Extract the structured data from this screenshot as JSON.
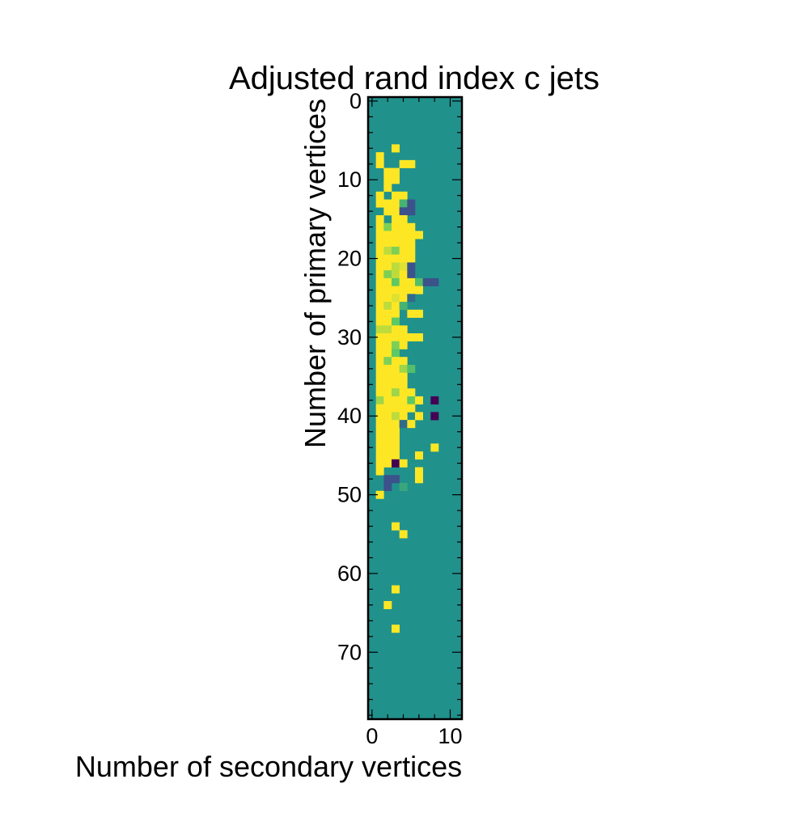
{
  "chart_data": {
    "type": "heatmap",
    "title": "Adjusted rand index c jets",
    "xlabel": "Number of secondary vertices",
    "ylabel": "Number of primary vertices",
    "x_ticks": [
      "0",
      "10"
    ],
    "y_ticks": [
      "0",
      "10",
      "20",
      "30",
      "40",
      "50",
      "60",
      "70"
    ],
    "x_range": [
      -0.5,
      11.5
    ],
    "y_range": [
      -0.5,
      78.5
    ],
    "y_axis_inverted": true,
    "colormap": "viridis",
    "value_range": [
      -1,
      1
    ],
    "background_value": 0,
    "grid": false,
    "legend": "none",
    "cells": [
      {
        "x": 3,
        "y": 6,
        "v": 1
      },
      {
        "x": 1,
        "y": 7,
        "v": 1
      },
      {
        "x": 1,
        "y": 8,
        "v": 1
      },
      {
        "x": 4,
        "y": 8,
        "v": 1
      },
      {
        "x": 5,
        "y": 8,
        "v": 1
      },
      {
        "x": 2,
        "y": 9,
        "v": 1
      },
      {
        "x": 3,
        "y": 9,
        "v": 1
      },
      {
        "x": 2,
        "y": 10,
        "v": 1
      },
      {
        "x": 3,
        "y": 10,
        "v": 1
      },
      {
        "x": 2,
        "y": 11,
        "v": 1
      },
      {
        "x": 1,
        "y": 12,
        "v": 1
      },
      {
        "x": 3,
        "y": 12,
        "v": 1
      },
      {
        "x": 4,
        "y": 12,
        "v": 1
      },
      {
        "x": 1,
        "y": 13,
        "v": 1
      },
      {
        "x": 2,
        "y": 13,
        "v": 1
      },
      {
        "x": 3,
        "y": 13,
        "v": 1
      },
      {
        "x": 4,
        "y": 13,
        "v": 0.3
      },
      {
        "x": 5,
        "y": 13,
        "v": -0.5
      },
      {
        "x": 2,
        "y": 14,
        "v": 1
      },
      {
        "x": 3,
        "y": 14,
        "v": 1
      },
      {
        "x": 4,
        "y": 14,
        "v": -0.5
      },
      {
        "x": 5,
        "y": 14,
        "v": -0.5
      },
      {
        "x": 1,
        "y": 15,
        "v": 1
      },
      {
        "x": 3,
        "y": 15,
        "v": 1
      },
      {
        "x": 4,
        "y": 15,
        "v": 1
      },
      {
        "x": 1,
        "y": 16,
        "v": 1
      },
      {
        "x": 2,
        "y": 16,
        "v": 0.6
      },
      {
        "x": 3,
        "y": 16,
        "v": 1
      },
      {
        "x": 4,
        "y": 16,
        "v": 1
      },
      {
        "x": 5,
        "y": 16,
        "v": 1
      },
      {
        "x": 1,
        "y": 17,
        "v": 1
      },
      {
        "x": 2,
        "y": 17,
        "v": 1
      },
      {
        "x": 3,
        "y": 17,
        "v": 1
      },
      {
        "x": 4,
        "y": 17,
        "v": 1
      },
      {
        "x": 5,
        "y": 17,
        "v": 1
      },
      {
        "x": 6,
        "y": 17,
        "v": 1
      },
      {
        "x": 1,
        "y": 18,
        "v": 1
      },
      {
        "x": 2,
        "y": 18,
        "v": 1
      },
      {
        "x": 3,
        "y": 18,
        "v": 1
      },
      {
        "x": 4,
        "y": 18,
        "v": 1
      },
      {
        "x": 5,
        "y": 18,
        "v": 1
      },
      {
        "x": 1,
        "y": 19,
        "v": 1
      },
      {
        "x": 2,
        "y": 19,
        "v": 0.8
      },
      {
        "x": 3,
        "y": 19,
        "v": 0.6
      },
      {
        "x": 4,
        "y": 19,
        "v": 1
      },
      {
        "x": 5,
        "y": 19,
        "v": 1
      },
      {
        "x": 1,
        "y": 20,
        "v": 1
      },
      {
        "x": 2,
        "y": 20,
        "v": 1
      },
      {
        "x": 3,
        "y": 20,
        "v": 1
      },
      {
        "x": 4,
        "y": 20,
        "v": 1
      },
      {
        "x": 5,
        "y": 20,
        "v": 1
      },
      {
        "x": 1,
        "y": 21,
        "v": 1
      },
      {
        "x": 2,
        "y": 21,
        "v": 1
      },
      {
        "x": 3,
        "y": 21,
        "v": 0.8
      },
      {
        "x": 4,
        "y": 21,
        "v": 0.9
      },
      {
        "x": 5,
        "y": 21,
        "v": -0.5
      },
      {
        "x": 1,
        "y": 22,
        "v": 1
      },
      {
        "x": 2,
        "y": 22,
        "v": 0.6
      },
      {
        "x": 3,
        "y": 22,
        "v": 0.8
      },
      {
        "x": 4,
        "y": 22,
        "v": 1
      },
      {
        "x": 5,
        "y": 22,
        "v": -0.5
      },
      {
        "x": 1,
        "y": 23,
        "v": 1
      },
      {
        "x": 2,
        "y": 23,
        "v": 1
      },
      {
        "x": 3,
        "y": 23,
        "v": 0.5
      },
      {
        "x": 4,
        "y": 23,
        "v": 1
      },
      {
        "x": 5,
        "y": 23,
        "v": 1
      },
      {
        "x": 6,
        "y": 23,
        "v": 0.4
      },
      {
        "x": 7,
        "y": 23,
        "v": -0.5
      },
      {
        "x": 8,
        "y": 23,
        "v": -0.5
      },
      {
        "x": 1,
        "y": 24,
        "v": 1
      },
      {
        "x": 2,
        "y": 24,
        "v": 1
      },
      {
        "x": 3,
        "y": 24,
        "v": 1
      },
      {
        "x": 4,
        "y": 24,
        "v": 1
      },
      {
        "x": 5,
        "y": 24,
        "v": 1
      },
      {
        "x": 6,
        "y": 24,
        "v": 1
      },
      {
        "x": 1,
        "y": 25,
        "v": 1
      },
      {
        "x": 2,
        "y": 25,
        "v": 1
      },
      {
        "x": 3,
        "y": 25,
        "v": 0.9
      },
      {
        "x": 4,
        "y": 25,
        "v": 1
      },
      {
        "x": 5,
        "y": 25,
        "v": -0.3
      },
      {
        "x": 1,
        "y": 26,
        "v": 1
      },
      {
        "x": 2,
        "y": 26,
        "v": 0.8
      },
      {
        "x": 3,
        "y": 26,
        "v": 1
      },
      {
        "x": 4,
        "y": 26,
        "v": 0.3
      },
      {
        "x": 1,
        "y": 27,
        "v": 1
      },
      {
        "x": 2,
        "y": 27,
        "v": 1
      },
      {
        "x": 3,
        "y": 27,
        "v": 1
      },
      {
        "x": 5,
        "y": 27,
        "v": 1
      },
      {
        "x": 6,
        "y": 27,
        "v": 1
      },
      {
        "x": 1,
        "y": 28,
        "v": 1
      },
      {
        "x": 2,
        "y": 28,
        "v": 1
      },
      {
        "x": 3,
        "y": 28,
        "v": 0.5
      },
      {
        "x": 1,
        "y": 29,
        "v": 0.8
      },
      {
        "x": 2,
        "y": 29,
        "v": 0.8
      },
      {
        "x": 3,
        "y": 29,
        "v": 1
      },
      {
        "x": 4,
        "y": 29,
        "v": 1
      },
      {
        "x": 1,
        "y": 30,
        "v": 1
      },
      {
        "x": 2,
        "y": 30,
        "v": 1
      },
      {
        "x": 3,
        "y": 30,
        "v": 1
      },
      {
        "x": 4,
        "y": 30,
        "v": 1
      },
      {
        "x": 5,
        "y": 30,
        "v": 1
      },
      {
        "x": 6,
        "y": 30,
        "v": 1
      },
      {
        "x": 1,
        "y": 31,
        "v": 1
      },
      {
        "x": 2,
        "y": 31,
        "v": 1
      },
      {
        "x": 3,
        "y": 31,
        "v": 0.6
      },
      {
        "x": 4,
        "y": 31,
        "v": 1
      },
      {
        "x": 1,
        "y": 32,
        "v": 1
      },
      {
        "x": 2,
        "y": 32,
        "v": 1
      },
      {
        "x": 3,
        "y": 32,
        "v": 0.5
      },
      {
        "x": 1,
        "y": 33,
        "v": 1
      },
      {
        "x": 2,
        "y": 33,
        "v": 0.6
      },
      {
        "x": 3,
        "y": 33,
        "v": 1
      },
      {
        "x": 4,
        "y": 33,
        "v": 1
      },
      {
        "x": 1,
        "y": 34,
        "v": 1
      },
      {
        "x": 2,
        "y": 34,
        "v": 1
      },
      {
        "x": 3,
        "y": 34,
        "v": 1
      },
      {
        "x": 4,
        "y": 34,
        "v": 0.7
      },
      {
        "x": 5,
        "y": 34,
        "v": 0.4
      },
      {
        "x": 1,
        "y": 35,
        "v": 1
      },
      {
        "x": 2,
        "y": 35,
        "v": 1
      },
      {
        "x": 3,
        "y": 35,
        "v": 1
      },
      {
        "x": 4,
        "y": 35,
        "v": 1
      },
      {
        "x": 1,
        "y": 36,
        "v": 1
      },
      {
        "x": 2,
        "y": 36,
        "v": 1
      },
      {
        "x": 3,
        "y": 36,
        "v": 1
      },
      {
        "x": 4,
        "y": 36,
        "v": 1
      },
      {
        "x": 1,
        "y": 37,
        "v": 1
      },
      {
        "x": 2,
        "y": 37,
        "v": 1
      },
      {
        "x": 3,
        "y": 37,
        "v": 0.7
      },
      {
        "x": 4,
        "y": 37,
        "v": 1
      },
      {
        "x": 5,
        "y": 37,
        "v": 1
      },
      {
        "x": 1,
        "y": 38,
        "v": 0.7
      },
      {
        "x": 2,
        "y": 38,
        "v": 1
      },
      {
        "x": 3,
        "y": 38,
        "v": 1
      },
      {
        "x": 4,
        "y": 38,
        "v": 1
      },
      {
        "x": 5,
        "y": 38,
        "v": 0.5
      },
      {
        "x": 6,
        "y": 38,
        "v": 1
      },
      {
        "x": 8,
        "y": 38,
        "v": -1
      },
      {
        "x": 1,
        "y": 39,
        "v": 1
      },
      {
        "x": 2,
        "y": 39,
        "v": 1
      },
      {
        "x": 3,
        "y": 39,
        "v": 1
      },
      {
        "x": 4,
        "y": 39,
        "v": 1
      },
      {
        "x": 5,
        "y": 39,
        "v": 1
      },
      {
        "x": 1,
        "y": 40,
        "v": 1
      },
      {
        "x": 2,
        "y": 40,
        "v": 1
      },
      {
        "x": 3,
        "y": 40,
        "v": 0.8
      },
      {
        "x": 4,
        "y": 40,
        "v": 1
      },
      {
        "x": 6,
        "y": 40,
        "v": 1
      },
      {
        "x": 8,
        "y": 40,
        "v": -1
      },
      {
        "x": 1,
        "y": 41,
        "v": 1
      },
      {
        "x": 2,
        "y": 41,
        "v": 1
      },
      {
        "x": 3,
        "y": 41,
        "v": 1
      },
      {
        "x": 4,
        "y": 41,
        "v": -0.3
      },
      {
        "x": 5,
        "y": 41,
        "v": 1
      },
      {
        "x": 1,
        "y": 42,
        "v": 1
      },
      {
        "x": 2,
        "y": 42,
        "v": 1
      },
      {
        "x": 3,
        "y": 42,
        "v": 1
      },
      {
        "x": 1,
        "y": 43,
        "v": 1
      },
      {
        "x": 2,
        "y": 43,
        "v": 1
      },
      {
        "x": 3,
        "y": 43,
        "v": 1
      },
      {
        "x": 1,
        "y": 44,
        "v": 1
      },
      {
        "x": 2,
        "y": 44,
        "v": 1
      },
      {
        "x": 3,
        "y": 44,
        "v": 1
      },
      {
        "x": 8,
        "y": 44,
        "v": 1
      },
      {
        "x": 1,
        "y": 45,
        "v": 1
      },
      {
        "x": 2,
        "y": 45,
        "v": 1
      },
      {
        "x": 3,
        "y": 45,
        "v": 1
      },
      {
        "x": 6,
        "y": 45,
        "v": 1
      },
      {
        "x": 1,
        "y": 46,
        "v": 1
      },
      {
        "x": 2,
        "y": 46,
        "v": 1
      },
      {
        "x": 3,
        "y": 46,
        "v": -1
      },
      {
        "x": 4,
        "y": 46,
        "v": 1
      },
      {
        "x": 1,
        "y": 47,
        "v": 1
      },
      {
        "x": 6,
        "y": 47,
        "v": 1
      },
      {
        "x": 2,
        "y": 48,
        "v": -0.5
      },
      {
        "x": 3,
        "y": 48,
        "v": -0.5
      },
      {
        "x": 6,
        "y": 48,
        "v": 1
      },
      {
        "x": 2,
        "y": 49,
        "v": -0.5
      },
      {
        "x": 4,
        "y": 49,
        "v": 0.2
      },
      {
        "x": 1,
        "y": 50,
        "v": 1
      },
      {
        "x": 3,
        "y": 54,
        "v": 1
      },
      {
        "x": 4,
        "y": 55,
        "v": 1
      },
      {
        "x": 3,
        "y": 62,
        "v": 1
      },
      {
        "x": 2,
        "y": 64,
        "v": 1
      },
      {
        "x": 3,
        "y": 67,
        "v": 1
      }
    ]
  }
}
